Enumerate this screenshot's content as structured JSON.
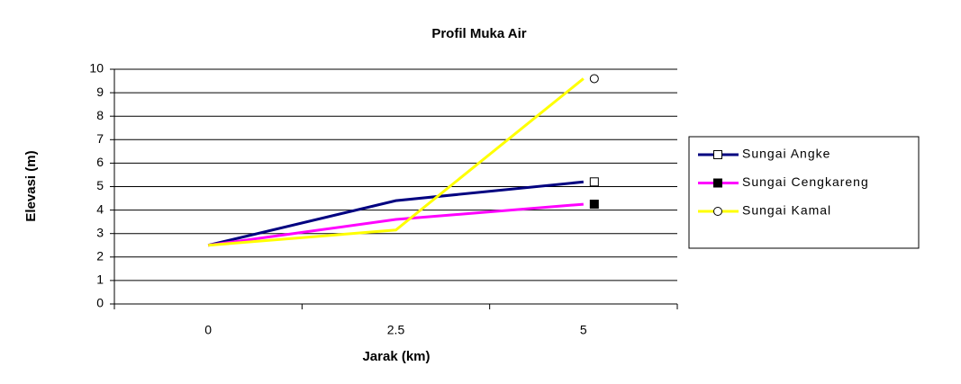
{
  "chart_data": {
    "type": "line",
    "title": "Profil Muka Air",
    "x_label": "Jarak (km)",
    "y_label": "Elevasi (m)",
    "categories": [
      "0",
      "2.5",
      "5"
    ],
    "series": [
      {
        "name": "Sungai Angke",
        "color": "#000080",
        "marker": "square-open",
        "values": [
          2.5,
          4.4,
          5.2
        ]
      },
      {
        "name": "Sungai Cengkareng",
        "color": "#ff00ff",
        "marker": "square-filled",
        "values": [
          2.5,
          3.6,
          4.25
        ]
      },
      {
        "name": "Sungai Kamal",
        "color": "#ffff00",
        "marker": "circle-open",
        "values": [
          2.5,
          3.15,
          9.6
        ]
      }
    ],
    "ylim": [
      0,
      10
    ],
    "yticks": [
      0,
      1,
      2,
      3,
      4,
      5,
      6,
      7,
      8,
      9,
      10
    ],
    "grid": true
  }
}
